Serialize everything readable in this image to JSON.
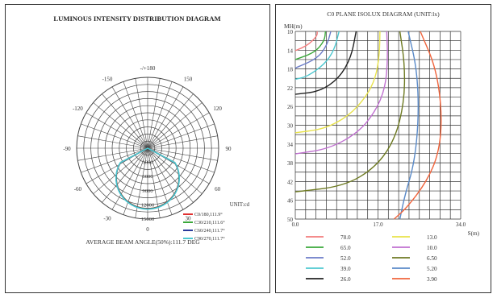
{
  "chart_data": [
    {
      "type": "polar",
      "title": "LUMINOUS   INTENSITY   DISTRIBUTION   DIAGRAM",
      "angle_labels": [
        {
          "angle": 180,
          "label": "-/+180"
        },
        {
          "angle": -150,
          "label": "-150"
        },
        {
          "angle": 150,
          "label": "150"
        },
        {
          "angle": -120,
          "label": "-120"
        },
        {
          "angle": 120,
          "label": "120"
        },
        {
          "angle": -90,
          "label": "-90"
        },
        {
          "angle": 90,
          "label": "90"
        },
        {
          "angle": -60,
          "label": "-60"
        },
        {
          "angle": 60,
          "label": "60"
        },
        {
          "angle": -30,
          "label": "-30"
        },
        {
          "angle": 30,
          "label": "30"
        },
        {
          "angle": 0,
          "label": "0"
        }
      ],
      "radial_labels": [
        "3000",
        "6000",
        "9000",
        "12000",
        "15000"
      ],
      "rmax": 15000,
      "unit_label": "UNIT:cd",
      "series": [
        {
          "name": "C0/180,111.9°",
          "color": "#e03030",
          "peak": 12750
        },
        {
          "name": "C30/210,111.6°",
          "color": "#3aa83a",
          "peak": 12750
        },
        {
          "name": "C60/240,111.7°",
          "color": "#2a3a9a",
          "peak": 12750
        },
        {
          "name": "C90/270,111.7°",
          "color": "#4ec8d0",
          "peak": 12750
        }
      ],
      "footer": "AVERAGE BEAM ANGLE(50%):111.7 DEG"
    },
    {
      "type": "line",
      "title": "C0 PLANE ISOLUX DIAGRAM (UNIT:lx)",
      "ylabel": "MH(m)",
      "xlabel": "S(m)",
      "y_ticks": [
        "10",
        "14",
        "18",
        "22",
        "26",
        "30",
        "34",
        "38",
        "42",
        "46",
        "50"
      ],
      "x_ticks": [
        "0.0",
        "17.0",
        "34.0"
      ],
      "xlim": [
        0,
        34
      ],
      "ylim": [
        10,
        50
      ],
      "series": [
        {
          "name": "78.0",
          "color": "#f27c7c",
          "x": [
            4.5,
            4.5,
            2.5,
            0
          ],
          "y": [
            10,
            11,
            13,
            14.1
          ]
        },
        {
          "name": "65.0",
          "color": "#3aa83a",
          "x": [
            6.2,
            6,
            4,
            0
          ],
          "y": [
            10,
            12,
            14.5,
            16
          ]
        },
        {
          "name": "52.0",
          "color": "#6b7cc8",
          "x": [
            7.3,
            6.5,
            4.5,
            0
          ],
          "y": [
            10,
            13,
            15.8,
            17.8
          ]
        },
        {
          "name": "39.0",
          "color": "#4ec8d0",
          "x": [
            9,
            8,
            6,
            2.5,
            0
          ],
          "y": [
            10,
            14,
            17,
            19.6,
            20.2
          ]
        },
        {
          "name": "26.0",
          "color": "#222222",
          "x": [
            12.5,
            11.5,
            9,
            5,
            0
          ],
          "y": [
            10,
            15.5,
            20,
            22.8,
            23.4
          ]
        },
        {
          "name": "13.0",
          "color": "#e8e24a",
          "x": [
            17.4,
            17.3,
            16.5,
            14.5,
            11,
            6,
            0
          ],
          "y": [
            10,
            15,
            20,
            24,
            28,
            30.8,
            31.6
          ]
        },
        {
          "name": "10.0",
          "color": "#c070d0",
          "x": [
            18.8,
            19,
            18.5,
            16.5,
            13,
            7,
            0
          ],
          "y": [
            10,
            16,
            22,
            27,
            31.5,
            35,
            36.1
          ]
        },
        {
          "name": "6.50",
          "color": "#6e7a22",
          "x": [
            21.5,
            22.5,
            22.4,
            20.5,
            16.5,
            10,
            0
          ],
          "y": [
            10,
            17,
            25,
            33,
            39,
            43,
            44.2
          ]
        },
        {
          "name": "5.20",
          "color": "#5a8ac8",
          "x": [
            23.2,
            25,
            25.4,
            24.5,
            22.5,
            21.5
          ],
          "y": [
            10,
            18,
            28,
            38,
            45,
            50
          ]
        },
        {
          "name": "3.90",
          "color": "#f0643c",
          "x": [
            25.7,
            29,
            30.2,
            29.5,
            27,
            23,
            20.3
          ],
          "y": [
            10,
            18,
            28,
            36,
            42,
            47.5,
            50
          ]
        }
      ],
      "grid": true
    }
  ]
}
